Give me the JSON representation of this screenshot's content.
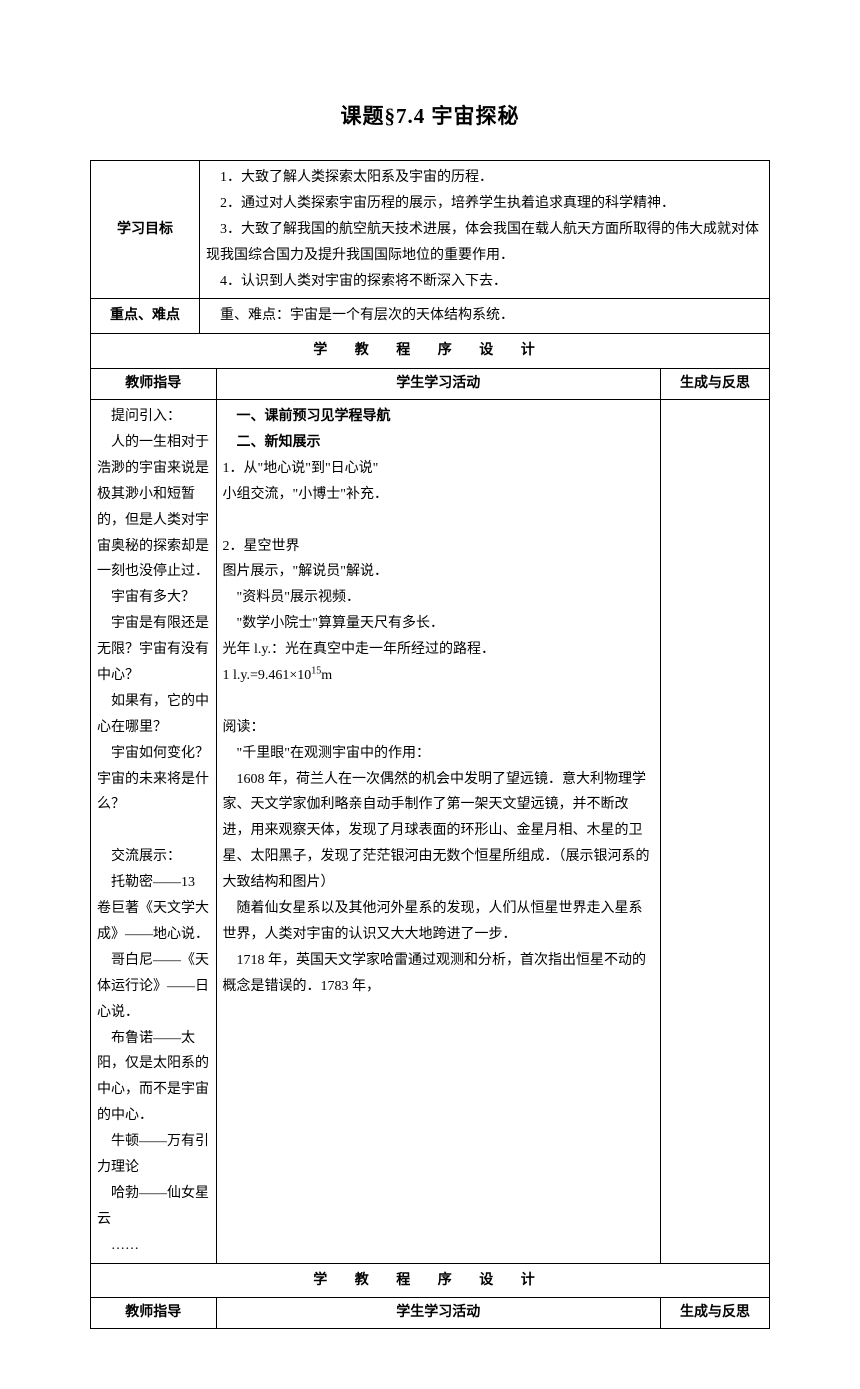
{
  "title": "课题§7.4 宇宙探秘",
  "rows": {
    "objective_label": "学习目标",
    "objective_text_l1": "1．大致了解人类探索太阳系及宇宙的历程．",
    "objective_text_l2": "2．通过对人类探索宇宙历程的展示，培养学生执着追求真理的科学精神．",
    "objective_text_l3": "3．大致了解我国的航空航天技术进展，体会我国在载人航天方面所取得的伟大成就对体现我国综合国力及提升我国国际地位的重要作用．",
    "objective_text_l4": "4．认识到人类对宇宙的探索将不断深入下去．",
    "focus_label": "重点、难点",
    "focus_text": "重、难点：宇宙是一个有层次的天体结构系统．",
    "section_header": "学 教 程 序 设 计",
    "col_teacher": "教师指导",
    "col_student": "学生学习活动",
    "col_reflect": "生成与反思",
    "teacher": {
      "p1": "提问引入：",
      "p2": "人的一生相对于浩渺的宇宙来说是极其渺小和短暂的，但是人类对宇宙奥秘的探索却是一刻也没停止过．",
      "p3": "宇宙有多大？",
      "p4": "宇宙是有限还是无限？宇宙有没有中心？",
      "p5": "如果有，它的中心在哪里？",
      "p6": "宇宙如何变化？宇宙的未来将是什么？",
      "p7": "交流展示：",
      "p8": "托勒密——13 卷巨著《天文学大成》——地心说．",
      "p9": "哥白尼——《天体运行论》——日心说．",
      "p10": "布鲁诺——太阳，仅是太阳系的中心，而不是宇宙的中心．",
      "p11": "牛顿——万有引力理论",
      "p12": "哈勃——仙女星云",
      "p13": "……"
    },
    "student": {
      "s1": "一、课前预习见学程导航",
      "s2": "二、新知展示",
      "s3": "1．从\"地心说\"到\"日心说\"",
      "s4": "小组交流，\"小博士\"补充．",
      "s5": "2．星空世界",
      "s6": "图片展示，\"解说员\"解说．",
      "s7": "\"资料员\"展示视频．",
      "s8": "\"数学小院士\"算算量天尺有多长．",
      "s9": "光年 l.y.：光在真空中走一年所经过的路程．",
      "s10a": "1 l.y.=9.461×10",
      "s10b": "15",
      "s10c": "m",
      "s11": "阅读：",
      "s12": "\"千里眼\"在观测宇宙中的作用：",
      "s13": "1608 年，荷兰人在一次偶然的机会中发明了望远镜．意大利物理学家、天文学家伽利略亲自动手制作了第一架天文望远镜，并不断改进，用来观察天体，发现了月球表面的环形山、金星月相、木星的卫星、太阳黑子，发现了茫茫银河由无数个恒星所组成．（展示银河系的大致结构和图片）",
      "s14": "随着仙女星系以及其他河外星系的发现，人们从恒星世界走入星系世界，人类对宇宙的认识又大大地跨进了一步．",
      "s15": "1718 年，英国天文学家哈雷通过观测和分析，首次指出恒星不动的概念是错误的．1783 年，"
    }
  }
}
